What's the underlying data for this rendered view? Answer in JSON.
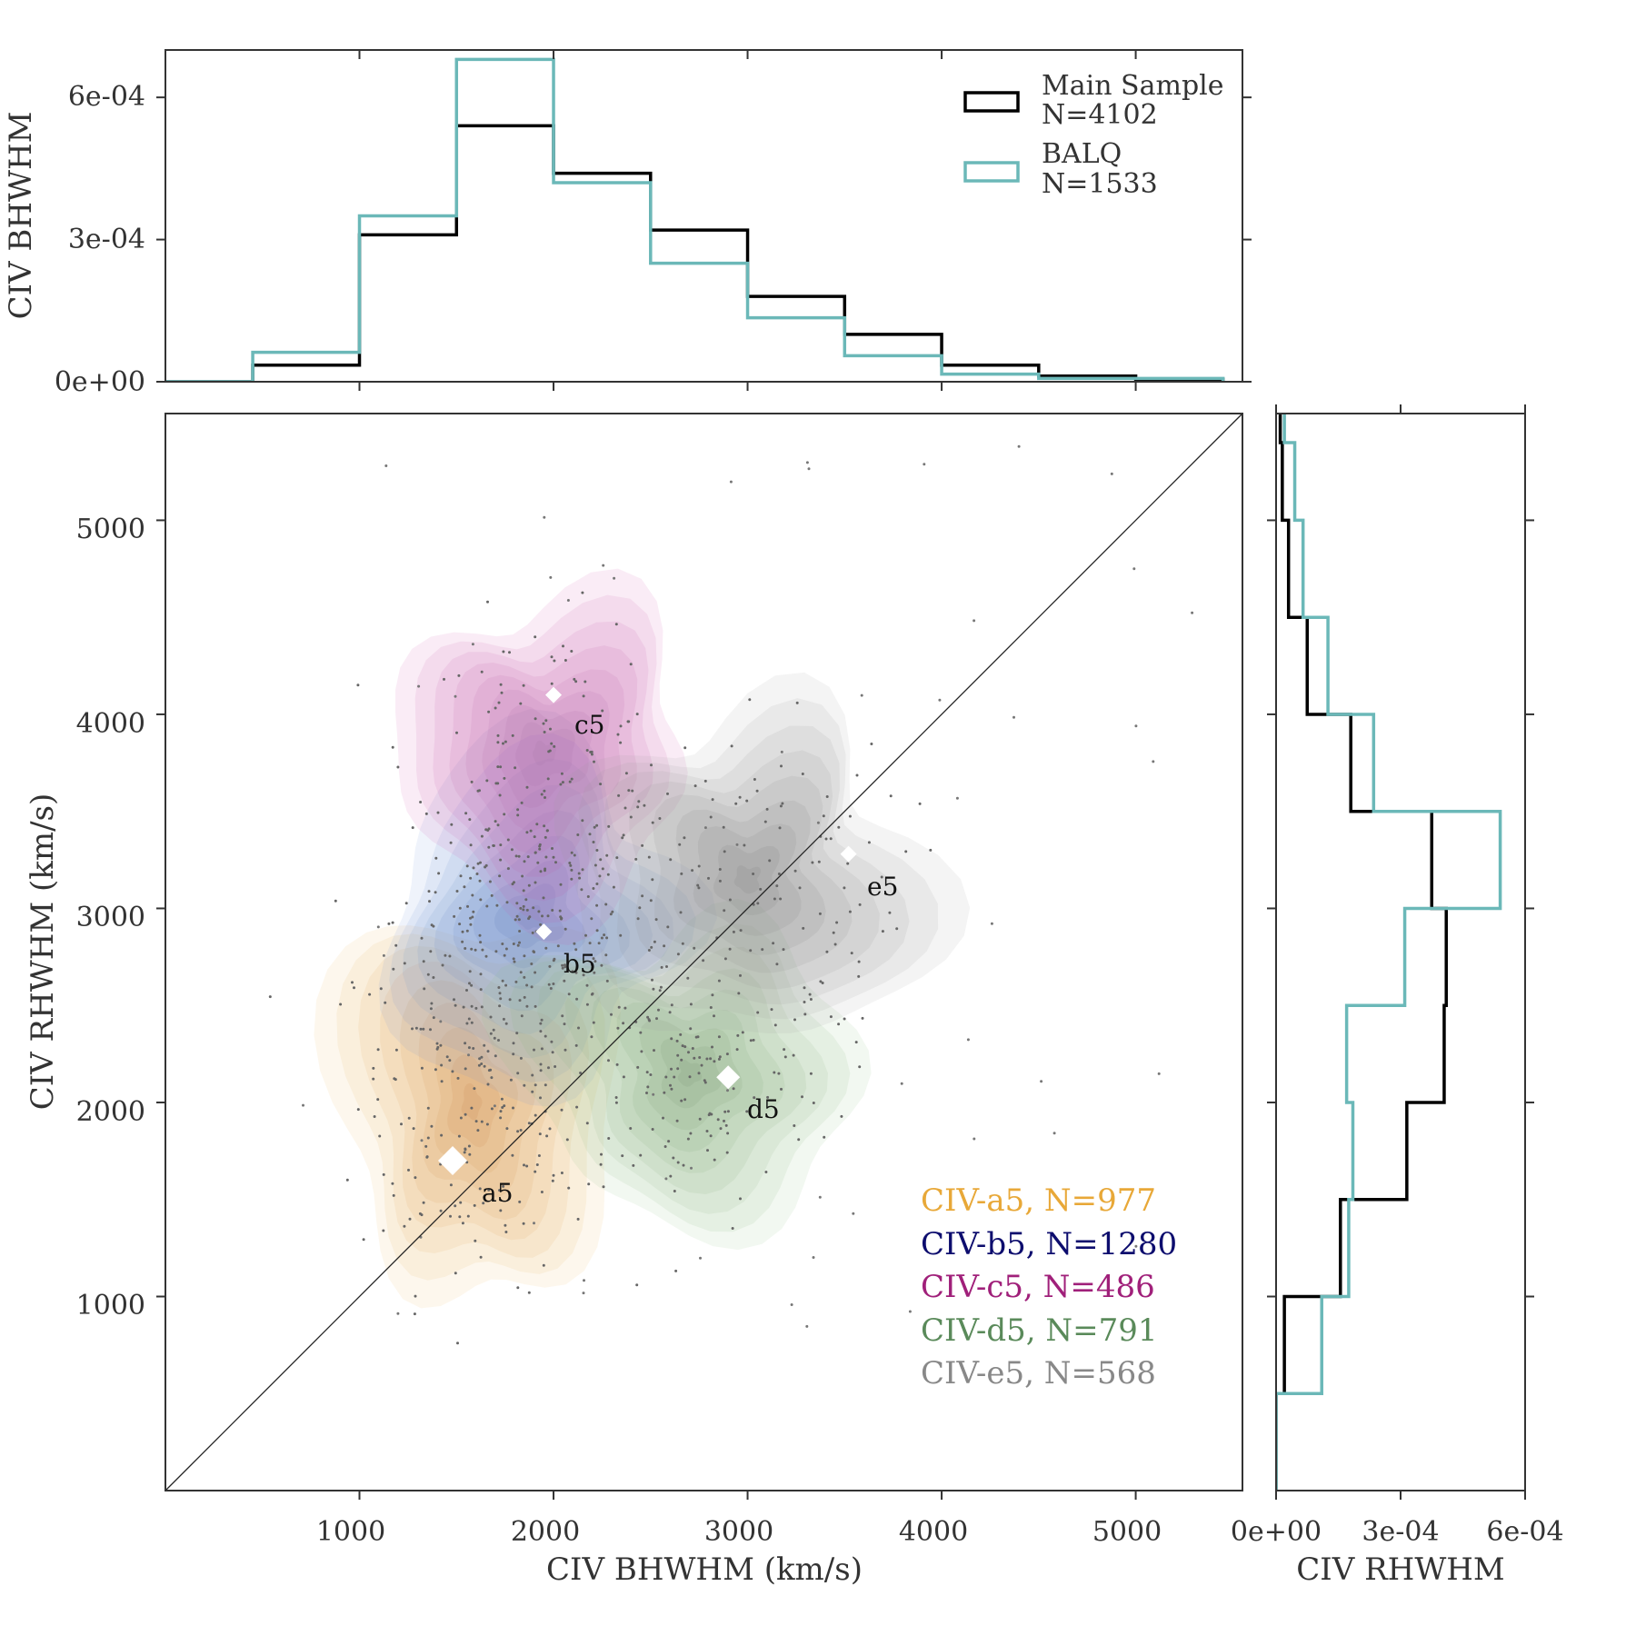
{
  "chart_data": [
    {
      "id": "top",
      "type": "histogram",
      "title": "",
      "xlabel": "",
      "ylabel": "CIV BHWHM",
      "xlim": [
        0,
        5550
      ],
      "ylim": [
        0,
        0.0007
      ],
      "yticks": [
        0,
        0.0003,
        0.0006
      ],
      "ytick_labels": [
        "0e+00",
        "3e-04",
        "6e-04"
      ],
      "bins": [
        0,
        450,
        1000,
        1500,
        2000,
        2500,
        3000,
        3500,
        4000,
        4500,
        5000,
        5450
      ],
      "series": [
        {
          "name": "Main Sample",
          "n_label": "N=4102",
          "color": "#000000",
          "values": [
            0,
            3.5e-05,
            0.00031,
            0.00054,
            0.00044,
            0.00032,
            0.00018,
            0.0001,
            3.5e-05,
            1.2e-05,
            5e-06
          ]
        },
        {
          "name": "BALQ",
          "n_label": "N=1533",
          "color": "#6bb8b8",
          "values": [
            0,
            6.2e-05,
            0.00035,
            0.00068,
            0.00042,
            0.00025,
            0.000135,
            5.5e-05,
            1.6e-05,
            7e-06,
            7e-06
          ]
        }
      ],
      "legend_position": "top-right"
    },
    {
      "id": "main",
      "type": "scatter",
      "title": "",
      "xlabel": "CIV BHWHM (km/s)",
      "ylabel": "CIV RHWHM (km/s)",
      "xlim": [
        0,
        5550
      ],
      "ylim": [
        0,
        5550
      ],
      "xticks": [
        1000,
        2000,
        3000,
        4000,
        5000
      ],
      "yticks": [
        1000,
        2000,
        3000,
        4000,
        5000
      ],
      "xtick_labels": [
        "1000",
        "2000",
        "3000",
        "4000",
        "5000"
      ],
      "ytick_labels": [
        "1000",
        "2000",
        "3000",
        "4000",
        "5000"
      ],
      "one_to_one_line": true,
      "clusters": [
        {
          "name": "a5",
          "legend": "CIV-a5, N=977",
          "n": 977,
          "color": "#e8a838",
          "center": [
            1600,
            2000
          ],
          "spread": [
            290,
            450
          ],
          "centroid": [
            1480,
            1700
          ],
          "rgb": [
            238,
            178,
            90
          ],
          "dark": [
            196,
            128,
            70
          ]
        },
        {
          "name": "b5",
          "legend": "CIV-b5, N=1280",
          "n": 1280,
          "color": "#0d0d6e",
          "center": [
            1880,
            2950
          ],
          "spread": [
            330,
            350
          ],
          "centroid": [
            1950,
            2880
          ],
          "rgb": [
            110,
            150,
            215
          ],
          "dark": [
            80,
            112,
            178
          ]
        },
        {
          "name": "c5",
          "legend": "CIV-c5, N=486",
          "n": 486,
          "color": "#a0207a",
          "center": [
            1950,
            3800
          ],
          "spread": [
            320,
            330
          ],
          "centroid": [
            2000,
            4100
          ],
          "rgb": [
            205,
            80,
            170
          ],
          "dark": [
            160,
            110,
            165
          ]
        },
        {
          "name": "d5",
          "legend": "CIV-d5, N=791",
          "n": 791,
          "color": "#5a8a5a",
          "center": [
            2700,
            2150
          ],
          "spread": [
            350,
            340
          ],
          "centroid": [
            2900,
            2130
          ],
          "rgb": [
            140,
            190,
            130
          ],
          "dark": [
            110,
            140,
            105
          ]
        },
        {
          "name": "e5",
          "legend": "CIV-e5, N=568",
          "n": 568,
          "color": "#888888",
          "center": [
            3000,
            3150
          ],
          "spread": [
            380,
            370
          ],
          "centroid": [
            3520,
            3280
          ],
          "rgb": [
            155,
            155,
            155
          ],
          "dark": [
            118,
            118,
            118
          ]
        }
      ],
      "legend_position": "lower-right"
    },
    {
      "id": "right",
      "type": "histogram",
      "orientation": "horizontal",
      "title": "",
      "xlabel": "CIV RHWHM",
      "ylabel": "",
      "xlim": [
        0,
        0.0006
      ],
      "ylim": [
        0,
        5550
      ],
      "xticks": [
        0,
        0.0003,
        0.0006
      ],
      "xtick_labels": [
        "0e+00",
        "3e-04",
        "6e-04"
      ],
      "bins": [
        0,
        500,
        1000,
        1500,
        2000,
        2500,
        3000,
        3500,
        4000,
        4500,
        5000,
        5400,
        5550
      ],
      "series": [
        {
          "name": "Main Sample",
          "color": "#000000",
          "values": [
            0,
            2e-05,
            0.000155,
            0.000315,
            0.000405,
            0.00041,
            0.000375,
            0.00018,
            7.5e-05,
            3e-05,
            1.5e-05,
            1e-05
          ]
        },
        {
          "name": "BALQ",
          "color": "#6bb8b8",
          "values": [
            0,
            0.00011,
            0.000175,
            0.000185,
            0.00017,
            0.00031,
            0.00054,
            0.000235,
            0.000125,
            6.5e-05,
            4.5e-05,
            2e-05
          ]
        }
      ]
    }
  ]
}
